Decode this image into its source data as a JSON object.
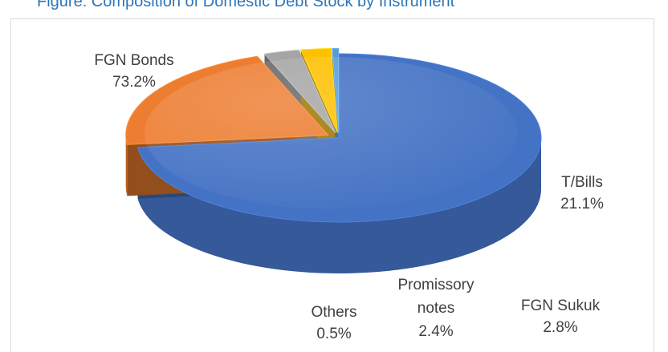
{
  "header": {
    "cropped_text": "Figure: Composition of Domestic Debt Stock by Instrument"
  },
  "chart_data": {
    "type": "pie",
    "title": "",
    "slices": [
      {
        "name": "FGN Bonds",
        "value": 73.2,
        "label": "73.2%",
        "color": "#4472c4"
      },
      {
        "name": "T/Bills",
        "value": 21.1,
        "label": "21.1%",
        "color": "#ed7d31"
      },
      {
        "name": "FGN Sukuk",
        "value": 2.8,
        "label": "2.8%",
        "color": "#a5a5a5"
      },
      {
        "name": "Promissory notes",
        "value": 2.4,
        "label": "2.4%",
        "color": "#ffc000"
      },
      {
        "name": "Others",
        "value": 0.5,
        "label": "0.5%",
        "color": "#5b9bd5"
      }
    ],
    "style": "3d-pie-exploded",
    "legend": "none"
  }
}
